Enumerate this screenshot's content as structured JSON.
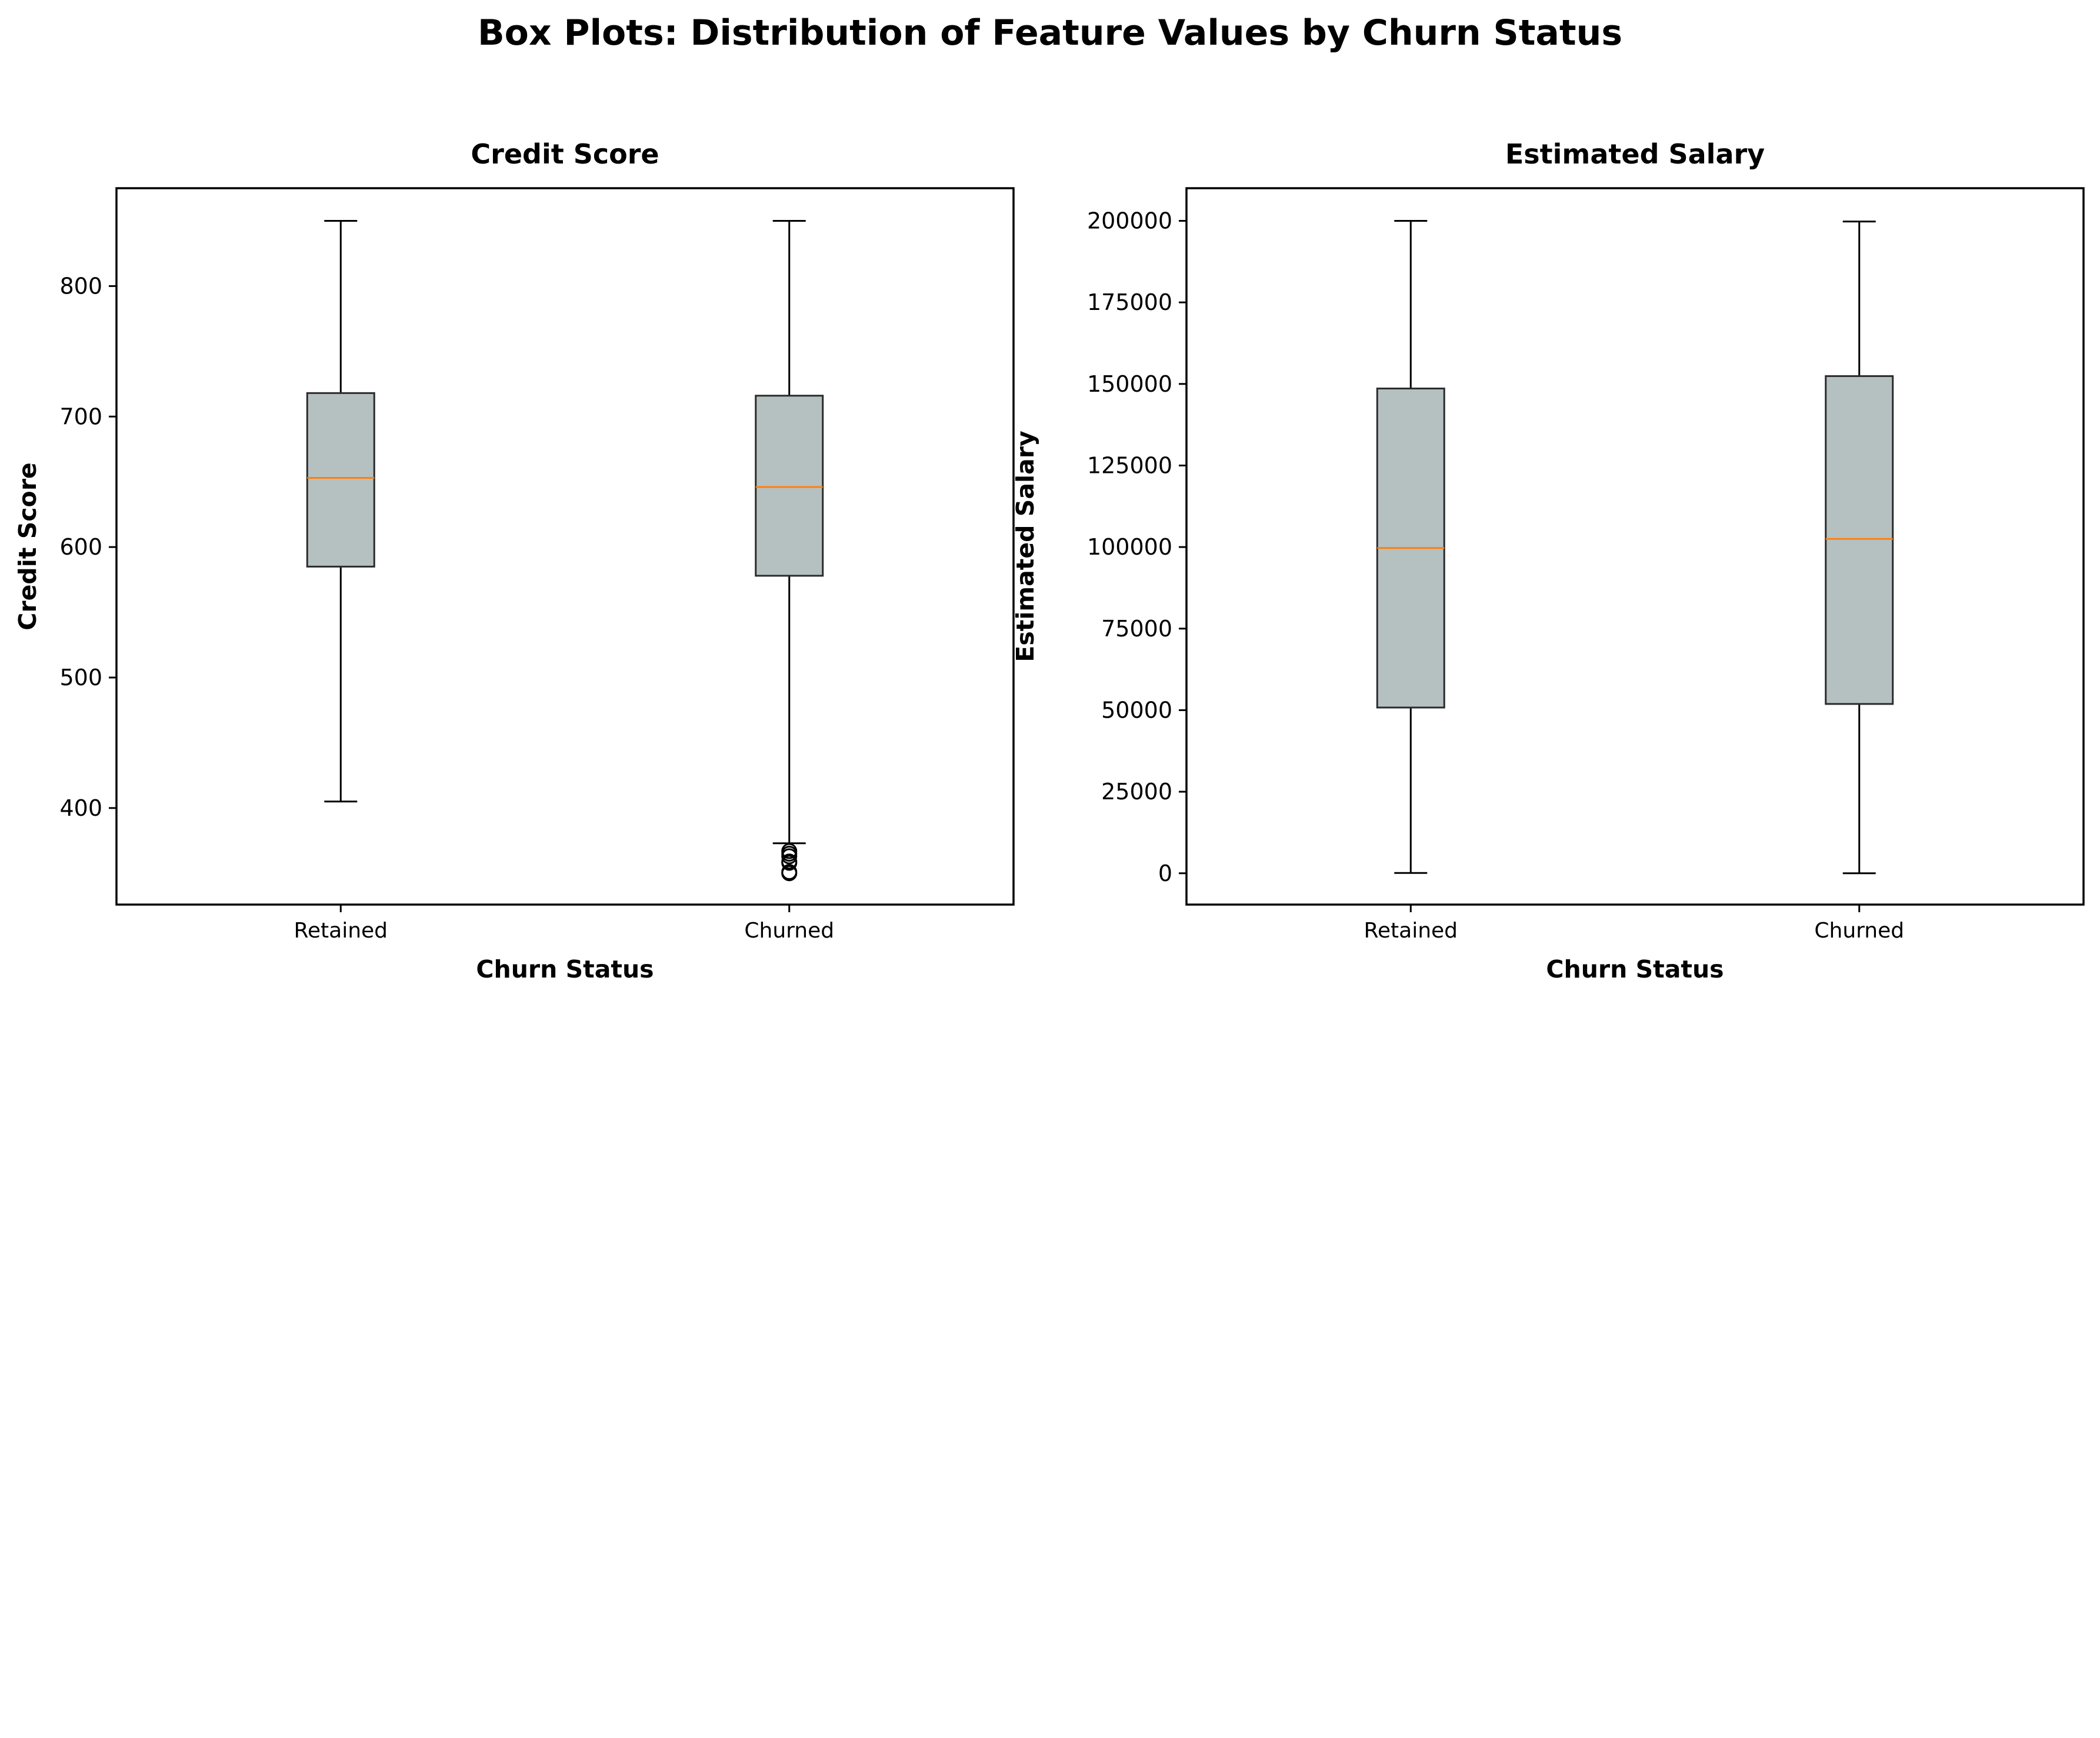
{
  "figure": {
    "title": "Box Plots: Distribution of Feature Values by Churn Status"
  },
  "chart_data": [
    {
      "type": "box",
      "title": "Credit Score",
      "xlabel": "Churn Status",
      "ylabel": "Credit Score",
      "ylim": [
        326,
        875
      ],
      "yticks": [
        400,
        500,
        600,
        700,
        800
      ],
      "categories": [
        "Retained",
        "Churned"
      ],
      "boxes": [
        {
          "category": "Retained",
          "whisker_low": 405,
          "q1": 585,
          "median": 653,
          "q3": 718,
          "whisker_high": 850,
          "outliers": []
        },
        {
          "category": "Churned",
          "whisker_low": 373,
          "q1": 578,
          "median": 646,
          "q3": 716,
          "whisker_high": 850,
          "outliers": [
            350,
            351,
            358,
            359,
            363,
            365,
            367
          ]
        }
      ],
      "box_color": "#95a5a6",
      "median_color": "#ff7f0e",
      "grid": false
    },
    {
      "type": "box",
      "title": "Estimated Salary",
      "xlabel": "Churn Status",
      "ylabel": "Estimated Salary",
      "ylim": [
        -9600,
        210000
      ],
      "yticks": [
        0,
        25000,
        50000,
        75000,
        100000,
        125000,
        150000,
        175000,
        200000
      ],
      "categories": [
        "Retained",
        "Churned"
      ],
      "boxes": [
        {
          "category": "Retained",
          "whisker_low": 90,
          "q1": 50800,
          "median": 99700,
          "q3": 148600,
          "whisker_high": 199990,
          "outliers": []
        },
        {
          "category": "Churned",
          "whisker_low": 12,
          "q1": 51900,
          "median": 102500,
          "q3": 152400,
          "whisker_high": 199800,
          "outliers": []
        }
      ],
      "box_color": "#95a5a6",
      "median_color": "#ff7f0e",
      "grid": false
    }
  ]
}
